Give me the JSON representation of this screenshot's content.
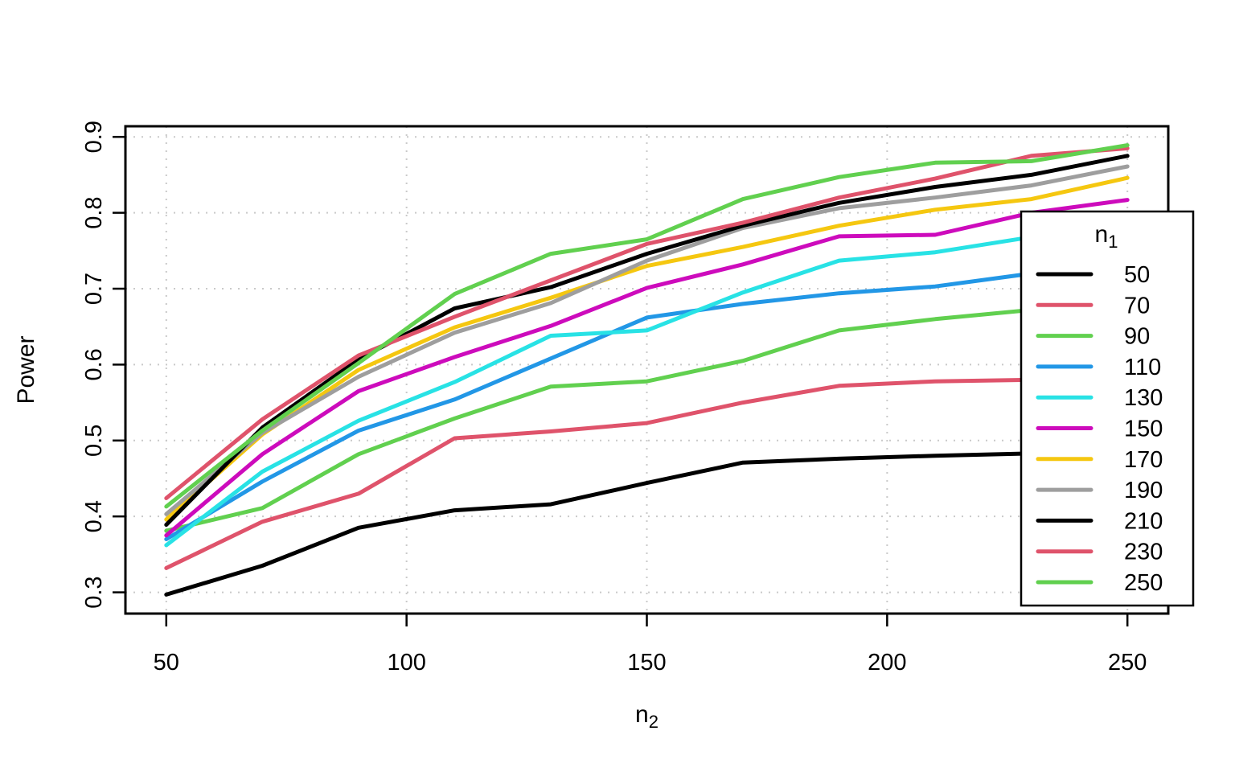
{
  "figure": {
    "background": "#ffffff",
    "box_color": "#000000",
    "grid_color": "#c9c9c9",
    "xlabel_base": "n",
    "xlabel_sub": "2",
    "ylabel": "Power",
    "legend_title_base": "n",
    "legend_title_sub": "1"
  },
  "chart_data": {
    "type": "line",
    "title": "",
    "xlabel": "n2",
    "ylabel": "Power",
    "x": [
      50,
      70,
      90,
      110,
      130,
      150,
      170,
      190,
      210,
      230,
      250
    ],
    "xticks": [
      50,
      100,
      150,
      200,
      250
    ],
    "yticks": [
      0.3,
      0.4,
      0.5,
      0.6,
      0.7,
      0.8,
      0.9
    ],
    "xlim": [
      41.5,
      258.5
    ],
    "ylim": [
      0.272,
      0.914
    ],
    "grid": "dotted",
    "legend_position": "right-inside",
    "legend_title": "n1",
    "series": [
      {
        "name": "50",
        "color": "#000000",
        "values": [
          0.297,
          0.335,
          0.385,
          0.408,
          0.416,
          0.444,
          0.471,
          0.476,
          0.48,
          0.483,
          0.484
        ]
      },
      {
        "name": "70",
        "color": "#DF536B",
        "values": [
          0.332,
          0.393,
          0.43,
          0.503,
          0.512,
          0.523,
          0.55,
          0.572,
          0.578,
          0.58,
          0.582
        ]
      },
      {
        "name": "90",
        "color": "#61D04F",
        "values": [
          0.381,
          0.411,
          0.482,
          0.529,
          0.571,
          0.578,
          0.605,
          0.645,
          0.66,
          0.672,
          0.675
        ]
      },
      {
        "name": "110",
        "color": "#2297E6",
        "values": [
          0.37,
          0.446,
          0.513,
          0.554,
          0.608,
          0.662,
          0.68,
          0.694,
          0.703,
          0.72,
          0.725
        ]
      },
      {
        "name": "130",
        "color": "#28E2E5",
        "values": [
          0.362,
          0.459,
          0.526,
          0.577,
          0.638,
          0.645,
          0.695,
          0.737,
          0.748,
          0.768,
          0.775
        ]
      },
      {
        "name": "150",
        "color": "#CD0BBC",
        "values": [
          0.375,
          0.482,
          0.565,
          0.61,
          0.651,
          0.701,
          0.732,
          0.769,
          0.771,
          0.8,
          0.817
        ]
      },
      {
        "name": "170",
        "color": "#F5C710",
        "values": [
          0.396,
          0.508,
          0.593,
          0.649,
          0.688,
          0.73,
          0.755,
          0.783,
          0.804,
          0.818,
          0.846
        ]
      },
      {
        "name": "190",
        "color": "#9E9E9E",
        "values": [
          0.403,
          0.51,
          0.584,
          0.642,
          0.681,
          0.737,
          0.78,
          0.806,
          0.82,
          0.836,
          0.861
        ]
      },
      {
        "name": "210",
        "color": "#000000",
        "values": [
          0.389,
          0.517,
          0.607,
          0.674,
          0.702,
          0.746,
          0.783,
          0.813,
          0.834,
          0.85,
          0.875
        ]
      },
      {
        "name": "230",
        "color": "#DF536B",
        "values": [
          0.424,
          0.528,
          0.612,
          0.663,
          0.711,
          0.759,
          0.787,
          0.82,
          0.845,
          0.875,
          0.885
        ]
      },
      {
        "name": "250",
        "color": "#61D04F",
        "values": [
          0.413,
          0.513,
          0.602,
          0.693,
          0.746,
          0.765,
          0.818,
          0.847,
          0.866,
          0.868,
          0.889
        ]
      }
    ]
  }
}
